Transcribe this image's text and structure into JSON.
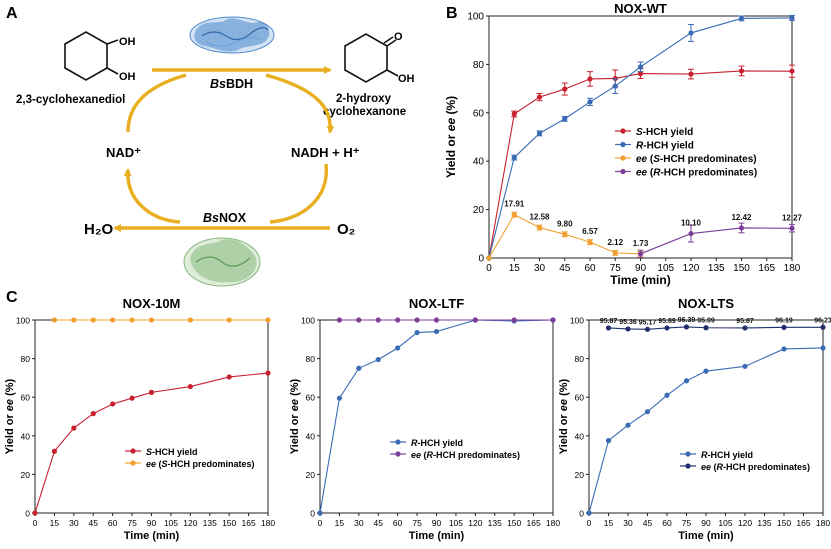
{
  "panel_labels": {
    "a": "A",
    "b": "B",
    "c": "C"
  },
  "scheme": {
    "substrate": "2,3-cyclohexanediol",
    "substrate_oh_top": "OH",
    "substrate_oh_bottom": "OH",
    "product": "2-hydroxy cyclohexanone",
    "product_line1": "2-hydroxy",
    "product_line2": "cyclohexanone",
    "product_carbonyl": "O",
    "product_oh": "OH",
    "enzyme_top_italic": "Bs",
    "enzyme_top_rest": "BDH",
    "enzyme_bottom_italic": "Bs",
    "enzyme_bottom_rest": "NOX",
    "cofactor_ox": "NAD⁺",
    "cofactor_red": "NADH + H⁺",
    "water": "H₂O",
    "oxygen": "O₂",
    "colors": {
      "arrow": "#e8b020",
      "protein_top": "#3a7cc6",
      "protein_bottom": "#79b36f"
    }
  },
  "chart_data": [
    {
      "id": "nox-wt",
      "type": "line",
      "title": "NOX-WT",
      "xlabel": "Time (min)",
      "ylabel": "Yield or ee (%)",
      "xlim": [
        0,
        180
      ],
      "ylim": [
        0,
        100
      ],
      "xticks": [
        0,
        15,
        30,
        45,
        60,
        75,
        90,
        105,
        120,
        135,
        150,
        165,
        180
      ],
      "yticks": [
        0,
        20,
        40,
        60,
        80,
        100
      ],
      "legend": "center-right",
      "series": [
        {
          "name": "S-HCH yield",
          "color": "#c8202e",
          "error_bars": true,
          "x": [
            0,
            15,
            30,
            45,
            60,
            75,
            90,
            120,
            150,
            180
          ],
          "y": [
            0,
            59.5,
            66.5,
            69.8,
            74,
            74.2,
            76.2,
            76,
            77.3,
            77.2
          ],
          "err": [
            0,
            1.2,
            1.5,
            2.5,
            3,
            3.5,
            2,
            2,
            2,
            2.5
          ]
        },
        {
          "name": "R-HCH yield",
          "color": "#3a6bb5",
          "error_bars": true,
          "x": [
            0,
            15,
            30,
            45,
            60,
            75,
            90,
            120,
            150,
            180
          ],
          "y": [
            0,
            41.5,
            51.5,
            57.5,
            64.5,
            71,
            79,
            93,
            99,
            99.2
          ],
          "err": [
            0,
            1,
            1,
            1,
            1.5,
            3,
            2,
            3.5,
            1,
            1
          ]
        },
        {
          "name": "ee (S-HCH predominates)",
          "color": "#f0a030",
          "error_bars": true,
          "x": [
            0,
            15,
            30,
            45,
            60,
            75,
            90
          ],
          "y": [
            0,
            17.91,
            12.58,
            9.8,
            6.57,
            2.12,
            1.73
          ],
          "err": [
            0,
            1,
            1,
            1,
            1,
            1,
            1
          ],
          "labels": [
            "",
            "17.91",
            "12.58",
            "9.80",
            "6.57",
            "2.12",
            "1.73"
          ]
        },
        {
          "name": "ee (R-HCH predominates)",
          "color": "#7b3f9a",
          "error_bars": true,
          "x": [
            90,
            120,
            150,
            180
          ],
          "y": [
            1.73,
            10.1,
            12.42,
            12.27
          ],
          "err": [
            1.5,
            3.5,
            2,
            1.5
          ],
          "labels": [
            "",
            "10.10",
            "12.42",
            "12.27"
          ]
        }
      ]
    },
    {
      "id": "nox-10m",
      "type": "line",
      "title": "NOX-10M",
      "xlabel": "Time (min)",
      "ylabel": "Yield or ee (%)",
      "xlim": [
        0,
        180
      ],
      "ylim": [
        0,
        100
      ],
      "xticks": [
        0,
        15,
        30,
        45,
        60,
        75,
        90,
        105,
        120,
        135,
        150,
        165,
        180
      ],
      "yticks": [
        0,
        20,
        40,
        60,
        80,
        100
      ],
      "legend": "center-right",
      "series": [
        {
          "name": "S-HCH yield",
          "color": "#c8202e",
          "x": [
            0,
            15,
            30,
            45,
            60,
            75,
            90,
            120,
            150,
            180
          ],
          "y": [
            0,
            32,
            44,
            51.5,
            56.5,
            59.5,
            62.5,
            65.5,
            70.5,
            72.5
          ]
        },
        {
          "name": "ee (S-HCH predominates)",
          "color": "#f0a030",
          "x": [
            15,
            30,
            45,
            60,
            75,
            90,
            120,
            150,
            180
          ],
          "y": [
            100,
            100,
            100,
            100,
            100,
            100,
            100,
            100,
            100
          ]
        }
      ]
    },
    {
      "id": "nox-ltf",
      "type": "line",
      "title": "NOX-LTF",
      "xlabel": "Time (min)",
      "ylabel": "Yield or ee (%)",
      "xlim": [
        0,
        180
      ],
      "ylim": [
        0,
        100
      ],
      "xticks": [
        0,
        15,
        30,
        45,
        60,
        75,
        90,
        105,
        120,
        135,
        150,
        165,
        180
      ],
      "yticks": [
        0,
        20,
        40,
        60,
        80,
        100
      ],
      "legend": "center-right",
      "series": [
        {
          "name": "R-HCH yield",
          "color": "#3a6bb5",
          "x": [
            0,
            15,
            30,
            45,
            60,
            75,
            90,
            120,
            150,
            180
          ],
          "y": [
            0,
            59.5,
            75,
            79.5,
            85.5,
            93.5,
            94,
            100,
            99.5,
            100
          ]
        },
        {
          "name": "ee (R-HCH predominates)",
          "color": "#7b3f9a",
          "x": [
            15,
            30,
            45,
            60,
            75,
            90,
            120,
            150,
            180
          ],
          "y": [
            100,
            100,
            100,
            100,
            100,
            100,
            100,
            100,
            100
          ]
        }
      ]
    },
    {
      "id": "nox-lts",
      "type": "line",
      "title": "NOX-LTS",
      "xlabel": "Time (min)",
      "ylabel": "Yield or ee (%)",
      "xlim": [
        0,
        180
      ],
      "ylim": [
        0,
        100
      ],
      "xticks": [
        0,
        15,
        30,
        45,
        60,
        75,
        90,
        105,
        120,
        135,
        150,
        165,
        180
      ],
      "yticks": [
        0,
        20,
        40,
        60,
        80,
        100
      ],
      "legend": "center-right",
      "series": [
        {
          "name": "R-HCH yield",
          "color": "#3a6bb5",
          "x": [
            0,
            15,
            30,
            45,
            60,
            75,
            90,
            120,
            150,
            180
          ],
          "y": [
            0,
            37.5,
            45.5,
            52.5,
            61,
            68.5,
            73.5,
            76,
            85,
            85.5
          ]
        },
        {
          "name": "ee (R-HCH predominates)",
          "color": "#1f2f6e",
          "x": [
            15,
            30,
            45,
            60,
            75,
            90,
            120,
            150,
            180
          ],
          "y": [
            95.87,
            95.36,
            95.17,
            95.89,
            96.39,
            95.99,
            95.87,
            96.19,
            96.23
          ],
          "labels": [
            "95.87",
            "95.36",
            "95.17",
            "95.89",
            "96.39",
            "95.99",
            "95.87",
            "96.19",
            "96.23"
          ]
        }
      ]
    }
  ]
}
